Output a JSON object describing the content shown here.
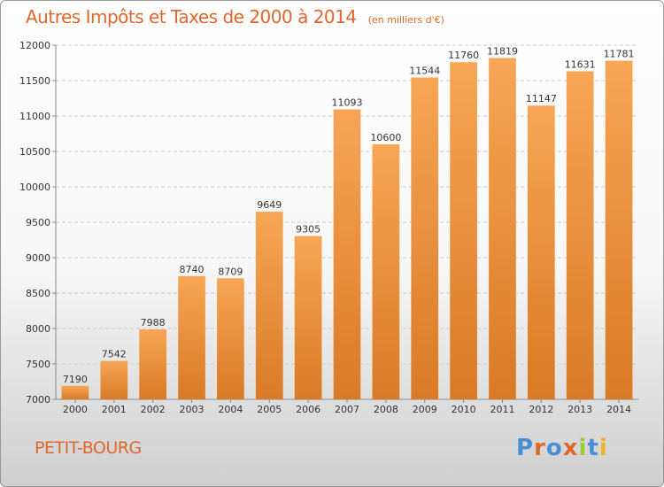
{
  "header": {
    "title": "Autres Impôts et Taxes de 2000 à 2014",
    "subtitle": "(en milliers d'€)"
  },
  "footer": {
    "commune": "PETIT-BOURG",
    "logo": "Proxiti",
    "logo_letters": [
      "P",
      "r",
      "o",
      "x",
      "i",
      "t",
      "i"
    ],
    "logo_colors": [
      "#4a8fd4",
      "#e0672b",
      "#4a8fd4",
      "#e0672b",
      "#9acd32",
      "#4a8fd4",
      "#f2b320"
    ]
  },
  "colors": {
    "bar_light": "#f7a656",
    "bar_dark": "#d97a26",
    "accent": "#e0672b",
    "grid": "#cccccc"
  },
  "chart_data": {
    "type": "bar",
    "title": "Autres Impôts et Taxes de 2000 à 2014",
    "subtitle": "(en milliers d'€)",
    "categories": [
      "2000",
      "2001",
      "2002",
      "2003",
      "2004",
      "2005",
      "2006",
      "2007",
      "2008",
      "2009",
      "2010",
      "2011",
      "2012",
      "2013",
      "2014"
    ],
    "values": [
      7190,
      7542,
      7988,
      8740,
      8709,
      9649,
      9305,
      11093,
      10600,
      11544,
      11760,
      11819,
      11147,
      11631,
      11781
    ],
    "ylim": [
      7000,
      12000
    ],
    "yticks": [
      7000,
      7500,
      8000,
      8500,
      9000,
      9500,
      10000,
      10500,
      11000,
      11500,
      12000
    ],
    "grid": true,
    "grid_style": "dashed horizontal",
    "data_labels": true
  }
}
